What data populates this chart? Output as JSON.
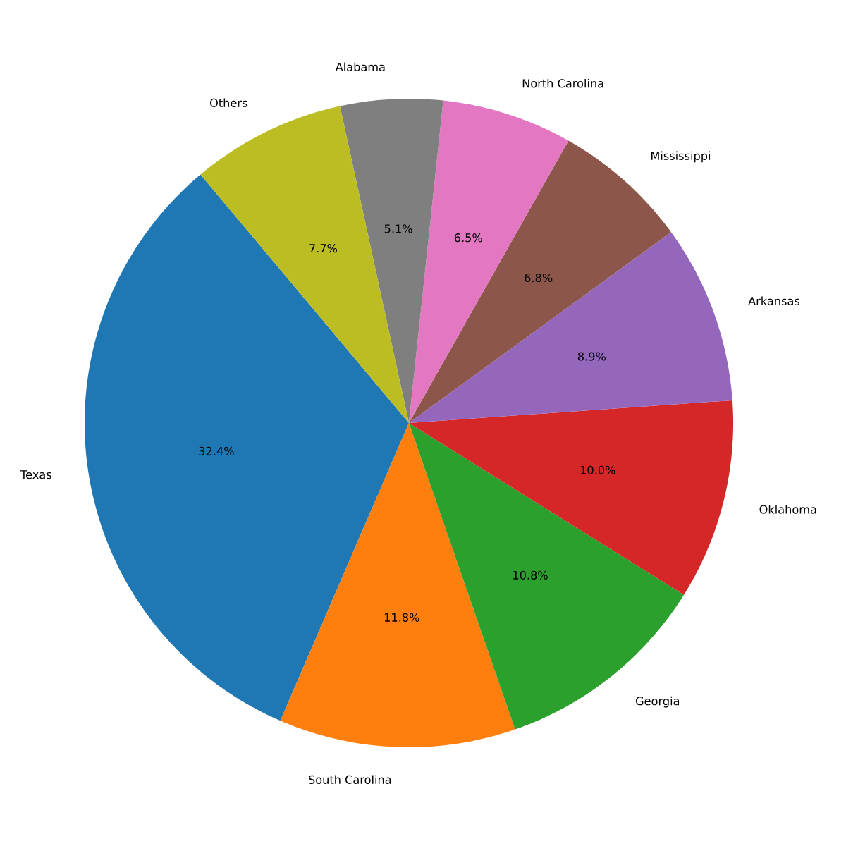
{
  "chart_data": {
    "type": "pie",
    "categories": [
      "Texas",
      "South Carolina",
      "Georgia",
      "Oklahoma",
      "Arkansas",
      "Mississippi",
      "North Carolina",
      "Alabama",
      "Others"
    ],
    "values": [
      32.4,
      11.8,
      10.8,
      10.0,
      8.9,
      6.8,
      6.5,
      5.1,
      7.7
    ],
    "colors": [
      "#1f77b4",
      "#ff7f0e",
      "#2ca02c",
      "#d62728",
      "#9467bd",
      "#8c564b",
      "#e377c2",
      "#7f7f7f",
      "#bcbd22"
    ],
    "value_labels": [
      "32.4%",
      "11.8%",
      "10.8%",
      "10.0%",
      "8.9%",
      "6.8%",
      "6.5%",
      "5.1%",
      "7.7%"
    ]
  }
}
